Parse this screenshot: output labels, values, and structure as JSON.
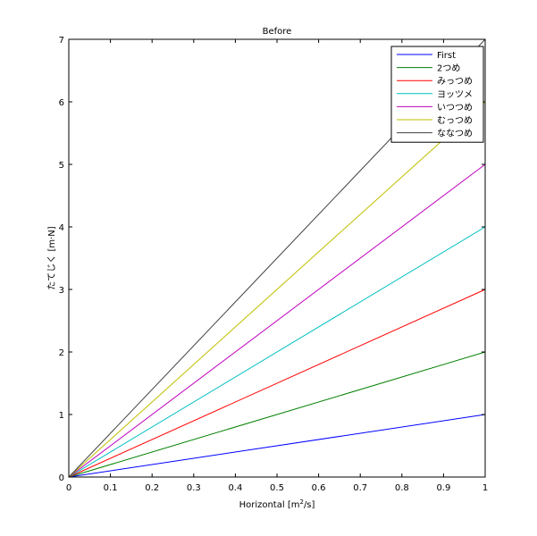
{
  "chart_data": {
    "type": "line",
    "title": "Before",
    "xlabel": {
      "base": "Horizontal [m",
      "sup": "2",
      "rest": "/s]"
    },
    "ylabel": "たてじく [m·N]",
    "xlim": [
      0,
      1
    ],
    "ylim": [
      0,
      7
    ],
    "xticks": [
      0,
      0.1,
      0.2,
      0.3,
      0.4,
      0.5,
      0.6,
      0.7,
      0.8,
      0.9,
      1
    ],
    "xtick_labels": [
      "0",
      "0.1",
      "0.2",
      "0.3",
      "0.4",
      "0.5",
      "0.6",
      "0.7",
      "0.8",
      "0.9",
      "1"
    ],
    "yticks": [
      0,
      1,
      2,
      3,
      4,
      5,
      6,
      7
    ],
    "ytick_labels": [
      "0",
      "1",
      "2",
      "3",
      "4",
      "5",
      "6",
      "7"
    ],
    "grid": false,
    "legend_position": "top-right",
    "x": [
      0,
      1
    ],
    "series": [
      {
        "name": "First",
        "color": "#0000ff",
        "values": [
          0,
          1
        ]
      },
      {
        "name": "2つめ",
        "color": "#008000",
        "values": [
          0,
          2
        ]
      },
      {
        "name": "みっつめ",
        "color": "#ff0000",
        "values": [
          0,
          3
        ]
      },
      {
        "name": "ヨッツメ",
        "color": "#00bfbf",
        "values": [
          0,
          4
        ]
      },
      {
        "name": "いつつめ",
        "color": "#bf00bf",
        "values": [
          0,
          5
        ]
      },
      {
        "name": "むっつめ",
        "color": "#bfbf00",
        "values": [
          0,
          6
        ]
      },
      {
        "name": "ななつめ",
        "color": "#404040",
        "values": [
          0,
          7
        ]
      }
    ]
  }
}
